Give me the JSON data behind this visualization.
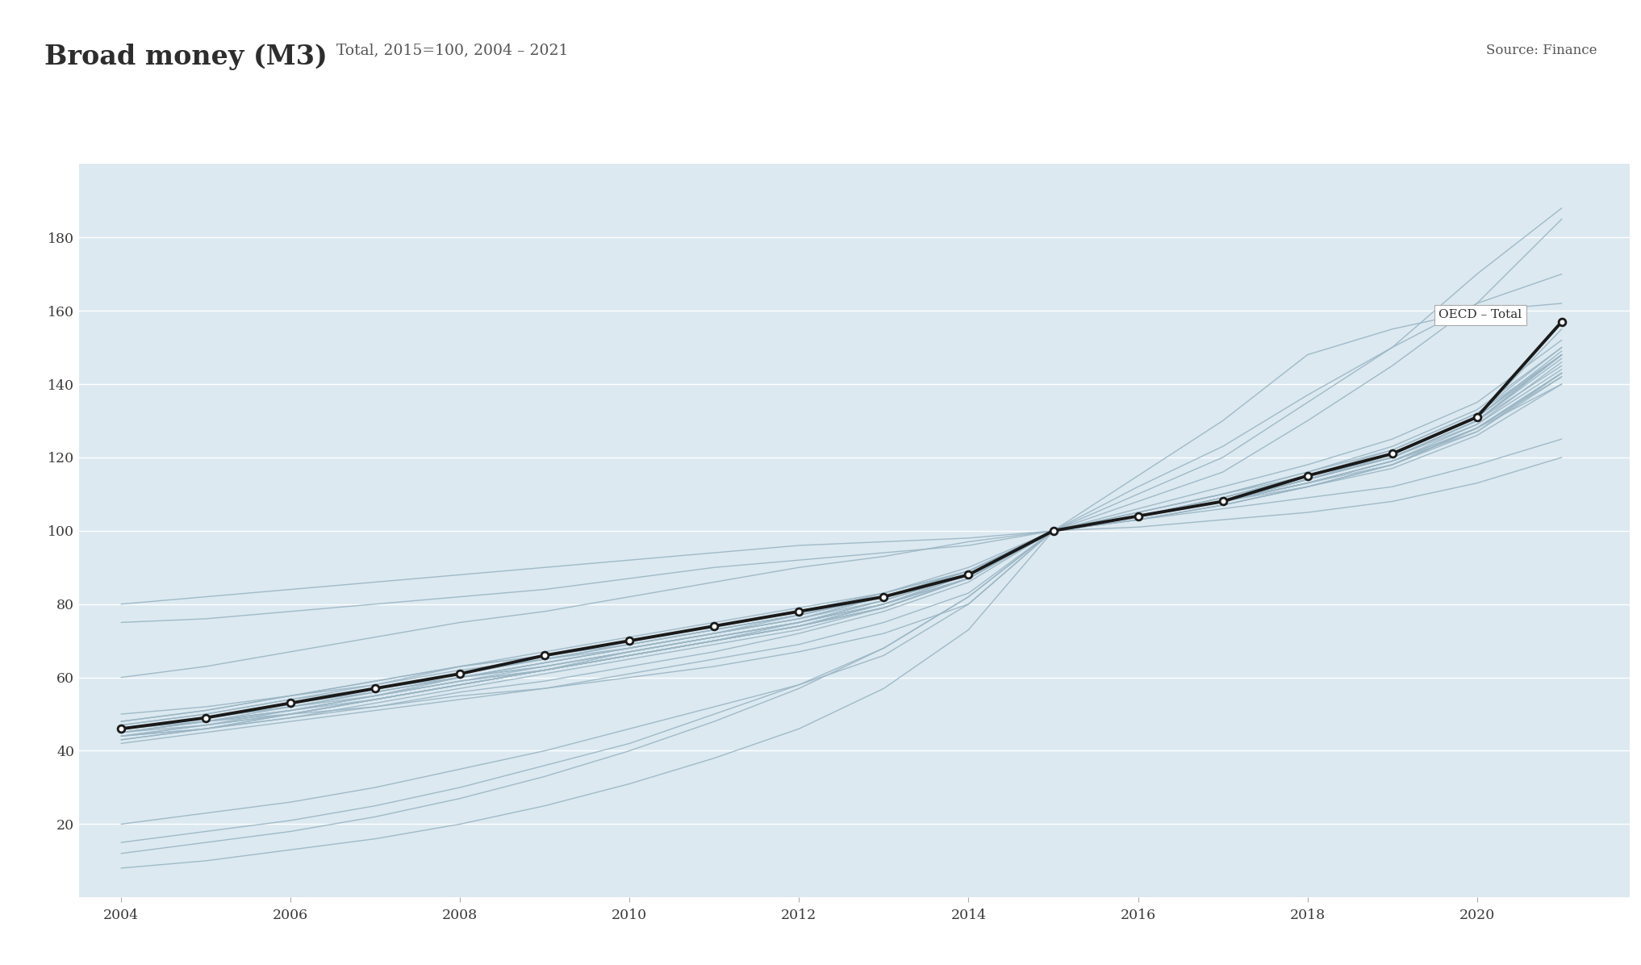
{
  "title": "Broad money (M3)",
  "subtitle": "Total, 2015=100, 2004 – 2021",
  "source": "Source: Finance",
  "bg_color": "#dce9f0",
  "years": [
    2004,
    2005,
    2006,
    2007,
    2008,
    2009,
    2010,
    2011,
    2012,
    2013,
    2014,
    2015,
    2016,
    2017,
    2018,
    2019,
    2020,
    2021
  ],
  "oecd_total": [
    46,
    49,
    53,
    57,
    61,
    66,
    70,
    74,
    78,
    82,
    88,
    100,
    104,
    108,
    115,
    121,
    131,
    157
  ],
  "countries": [
    [
      46,
      48,
      51,
      55,
      60,
      64,
      68,
      72,
      76,
      82,
      89,
      100,
      104,
      108,
      114,
      120,
      130,
      148
    ],
    [
      45,
      47,
      50,
      54,
      58,
      62,
      66,
      70,
      74,
      80,
      87,
      100,
      104,
      108,
      113,
      119,
      128,
      143
    ],
    [
      44,
      47,
      50,
      54,
      58,
      62,
      66,
      70,
      75,
      80,
      88,
      100,
      104,
      108,
      114,
      120,
      130,
      148
    ],
    [
      43,
      46,
      50,
      54,
      58,
      62,
      66,
      70,
      74,
      79,
      87,
      100,
      104,
      108,
      112,
      118,
      128,
      143
    ],
    [
      45,
      48,
      51,
      55,
      59,
      63,
      67,
      71,
      75,
      80,
      88,
      100,
      104,
      109,
      115,
      122,
      132,
      150
    ],
    [
      47,
      50,
      54,
      58,
      63,
      67,
      71,
      75,
      79,
      83,
      89,
      100,
      104,
      108,
      114,
      120,
      130,
      147
    ],
    [
      48,
      51,
      55,
      59,
      63,
      66,
      70,
      74,
      78,
      83,
      90,
      100,
      104,
      108,
      114,
      120,
      129,
      144
    ],
    [
      50,
      52,
      55,
      58,
      62,
      65,
      68,
      72,
      76,
      81,
      88,
      100,
      103,
      107,
      112,
      118,
      127,
      142
    ],
    [
      46,
      49,
      52,
      55,
      59,
      62,
      66,
      70,
      74,
      79,
      87,
      100,
      104,
      108,
      114,
      120,
      130,
      148
    ],
    [
      46,
      49,
      53,
      56,
      60,
      64,
      68,
      72,
      76,
      82,
      89,
      100,
      104,
      109,
      115,
      121,
      131,
      155
    ],
    [
      44,
      47,
      51,
      54,
      58,
      62,
      66,
      70,
      74,
      79,
      87,
      100,
      104,
      108,
      114,
      121,
      131,
      148
    ],
    [
      47,
      50,
      54,
      57,
      61,
      65,
      69,
      73,
      77,
      82,
      89,
      100,
      104,
      108,
      114,
      120,
      130,
      148
    ],
    [
      60,
      63,
      67,
      71,
      75,
      78,
      82,
      86,
      90,
      93,
      97,
      100,
      103,
      107,
      112,
      118,
      128,
      140
    ],
    [
      75,
      76,
      78,
      80,
      82,
      84,
      87,
      90,
      92,
      94,
      96,
      100,
      103,
      106,
      109,
      112,
      118,
      125
    ],
    [
      80,
      82,
      84,
      86,
      88,
      90,
      92,
      94,
      96,
      97,
      98,
      100,
      101,
      103,
      105,
      108,
      113,
      120
    ],
    [
      46,
      48,
      50,
      52,
      55,
      57,
      60,
      63,
      67,
      72,
      80,
      100,
      106,
      112,
      118,
      125,
      135,
      152
    ],
    [
      48,
      51,
      55,
      59,
      63,
      66,
      69,
      73,
      77,
      82,
      89,
      100,
      103,
      107,
      112,
      117,
      126,
      140
    ],
    [
      46,
      49,
      53,
      57,
      61,
      65,
      69,
      73,
      77,
      83,
      89,
      100,
      104,
      108,
      113,
      119,
      127,
      143
    ],
    [
      45,
      48,
      52,
      56,
      60,
      64,
      68,
      72,
      77,
      82,
      89,
      100,
      104,
      109,
      115,
      121,
      131,
      148
    ],
    [
      44,
      46,
      49,
      53,
      57,
      61,
      65,
      69,
      73,
      79,
      87,
      100,
      105,
      110,
      116,
      123,
      133,
      150
    ],
    [
      46,
      49,
      52,
      56,
      60,
      63,
      67,
      71,
      75,
      81,
      88,
      100,
      104,
      109,
      115,
      121,
      131,
      149
    ],
    [
      43,
      46,
      50,
      54,
      58,
      62,
      67,
      71,
      75,
      80,
      87,
      100,
      104,
      108,
      113,
      118,
      128,
      142
    ],
    [
      46,
      49,
      53,
      57,
      60,
      63,
      67,
      71,
      75,
      81,
      88,
      100,
      104,
      108,
      113,
      119,
      129,
      146
    ],
    [
      45,
      48,
      51,
      55,
      59,
      62,
      66,
      70,
      74,
      80,
      87,
      100,
      104,
      108,
      113,
      119,
      128,
      143
    ],
    [
      20,
      23,
      26,
      30,
      35,
      40,
      46,
      52,
      58,
      66,
      80,
      100,
      108,
      116,
      130,
      145,
      162,
      185
    ],
    [
      15,
      18,
      21,
      25,
      30,
      36,
      42,
      50,
      58,
      68,
      82,
      100,
      110,
      120,
      135,
      150,
      170,
      188
    ],
    [
      8,
      10,
      13,
      16,
      20,
      25,
      31,
      38,
      46,
      57,
      73,
      100,
      115,
      130,
      148,
      155,
      160,
      162
    ],
    [
      12,
      15,
      18,
      22,
      27,
      33,
      40,
      48,
      57,
      68,
      82,
      100,
      112,
      123,
      137,
      150,
      162,
      170
    ],
    [
      42,
      45,
      48,
      51,
      54,
      57,
      61,
      65,
      69,
      75,
      83,
      100,
      105,
      110,
      116,
      122,
      132,
      148
    ],
    [
      44,
      46,
      49,
      52,
      56,
      59,
      63,
      67,
      72,
      78,
      86,
      100,
      105,
      110,
      115,
      120,
      130,
      145
    ]
  ],
  "line_color": "#9ab5c4",
  "oecd_color": "#1a1a1a",
  "ylim": [
    0,
    200
  ],
  "yticks": [
    20,
    40,
    60,
    80,
    100,
    120,
    140,
    160,
    180
  ],
  "xlim": [
    2003.5,
    2021.8
  ],
  "xticks": [
    2004,
    2006,
    2008,
    2010,
    2012,
    2014,
    2016,
    2018,
    2020
  ],
  "annotation_text": "OECD – Total"
}
